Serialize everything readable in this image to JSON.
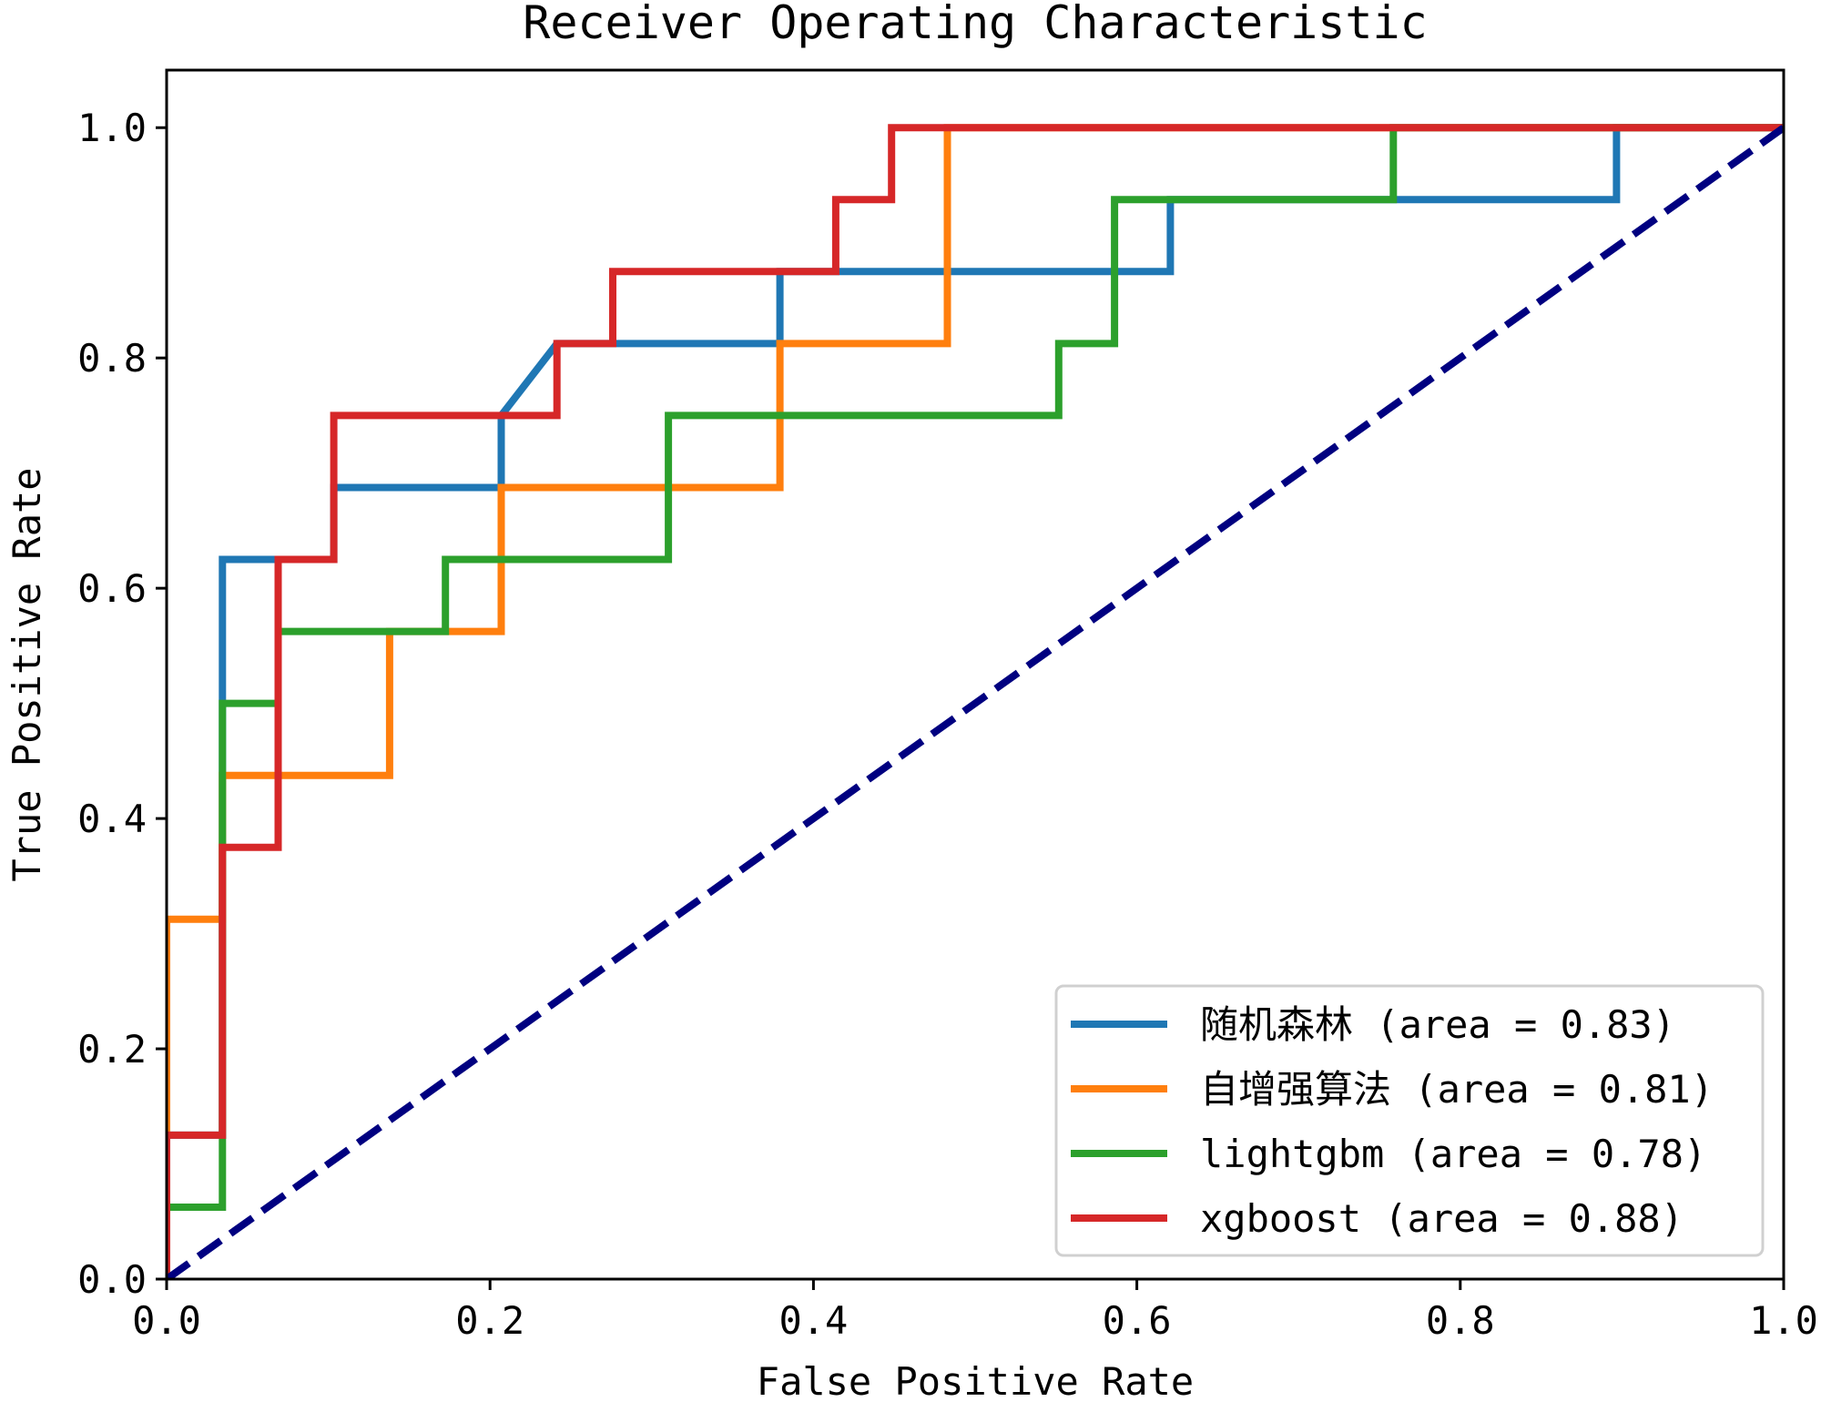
{
  "chart_data": {
    "type": "line",
    "title": "Receiver Operating Characteristic",
    "xlabel": "False Positive Rate",
    "ylabel": "True Positive Rate",
    "xlim": [
      0.0,
      1.0
    ],
    "ylim": [
      0.0,
      1.05
    ],
    "xticks": [
      "0.0",
      "0.2",
      "0.4",
      "0.6",
      "0.8",
      "1.0"
    ],
    "yticks": [
      "0.0",
      "0.2",
      "0.4",
      "0.6",
      "0.8",
      "1.0"
    ],
    "grid": false,
    "legend_position": "lower-right",
    "series": [
      {
        "name": "随机森林 (area = 0.83)",
        "color": "#1f77b4",
        "x": [
          0.0,
          0.0,
          0.0345,
          0.0345,
          0.0345,
          0.069,
          0.069,
          0.1034,
          0.1034,
          0.2069,
          0.2069,
          0.2414,
          0.2414,
          0.3793,
          0.3793,
          0.6207,
          0.6207,
          0.7586,
          0.8966,
          0.8966,
          1.0
        ],
        "y": [
          0.0,
          0.125,
          0.125,
          0.5,
          0.625,
          0.625,
          0.625,
          0.625,
          0.6875,
          0.6875,
          0.75,
          0.8125,
          0.8125,
          0.8125,
          0.875,
          0.875,
          0.9375,
          0.9375,
          0.9375,
          1.0,
          1.0
        ]
      },
      {
        "name": "自增强算法 (area = 0.81)",
        "color": "#ff7f0e",
        "x": [
          0.0,
          0.0,
          0.0345,
          0.0345,
          0.1379,
          0.1379,
          0.2069,
          0.2069,
          0.3793,
          0.3793,
          0.4828,
          0.4828,
          1.0
        ],
        "y": [
          0.0,
          0.3125,
          0.3125,
          0.4375,
          0.4375,
          0.5625,
          0.5625,
          0.6875,
          0.6875,
          0.8125,
          0.8125,
          1.0,
          1.0
        ]
      },
      {
        "name": "lightgbm (area = 0.78)",
        "color": "#2ca02c",
        "x": [
          0.0,
          0.0,
          0.0345,
          0.0345,
          0.069,
          0.069,
          0.1724,
          0.1724,
          0.3103,
          0.3103,
          0.5517,
          0.5517,
          0.5862,
          0.5862,
          0.7586,
          0.7586,
          1.0
        ],
        "y": [
          0.0,
          0.0625,
          0.0625,
          0.5,
          0.5,
          0.5625,
          0.5625,
          0.625,
          0.625,
          0.75,
          0.75,
          0.8125,
          0.8125,
          0.9375,
          0.9375,
          1.0,
          1.0
        ]
      },
      {
        "name": "xgboost (area = 0.88)",
        "color": "#d62728",
        "x": [
          0.0,
          0.0,
          0.0345,
          0.0345,
          0.069,
          0.069,
          0.1034,
          0.1034,
          0.2414,
          0.2414,
          0.2759,
          0.2759,
          0.4138,
          0.4138,
          0.4483,
          0.4483,
          1.0
        ],
        "y": [
          0.0,
          0.125,
          0.125,
          0.375,
          0.375,
          0.625,
          0.625,
          0.75,
          0.75,
          0.8125,
          0.8125,
          0.875,
          0.875,
          0.9375,
          0.9375,
          1.0,
          1.0
        ]
      }
    ],
    "reference_line": {
      "x": [
        0.0,
        1.0
      ],
      "y": [
        0.0,
        1.0
      ],
      "color": "#000080",
      "style": "dashed"
    }
  }
}
